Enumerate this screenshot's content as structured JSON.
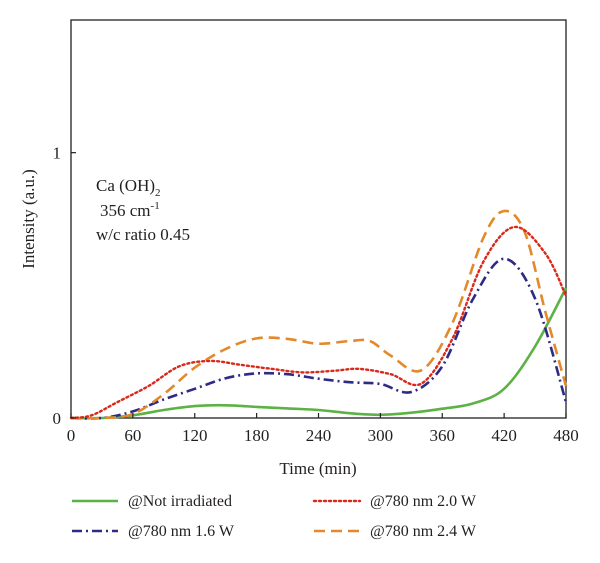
{
  "chart_data": {
    "type": "line",
    "xlabel": "Time (min)",
    "ylabel": "Intensity (a.u.)",
    "xlim": [
      0,
      480
    ],
    "ylim": [
      0,
      1.5
    ],
    "xticks": [
      0,
      60,
      120,
      180,
      240,
      300,
      360,
      420,
      480
    ],
    "yticks": [
      0,
      1
    ],
    "grid": false,
    "legend_position": "bottom",
    "annotations": {
      "compound": "Ca (OH)",
      "compound_subscript": "2",
      "wavenumber": "356 cm",
      "wavenumber_superscript": "-1",
      "ratio": "w/c ratio 0.45"
    },
    "series": [
      {
        "name": "@Not irradiated",
        "color": "#5cb245",
        "style": "solid",
        "x": [
          0,
          30,
          60,
          90,
          120,
          150,
          180,
          210,
          240,
          270,
          300,
          330,
          360,
          390,
          420,
          450,
          480
        ],
        "y": [
          0,
          0,
          0.01,
          0.03,
          0.045,
          0.048,
          0.042,
          0.036,
          0.03,
          0.018,
          0.012,
          0.02,
          0.035,
          0.055,
          0.11,
          0.27,
          0.49
        ]
      },
      {
        "name": "@780 nm 1.6 W",
        "color": "#2e2a86",
        "style": "dashdot",
        "x": [
          0,
          30,
          60,
          90,
          120,
          150,
          180,
          210,
          240,
          270,
          300,
          330,
          360,
          390,
          420,
          450,
          480
        ],
        "y": [
          0,
          0,
          0.025,
          0.07,
          0.11,
          0.15,
          0.168,
          0.165,
          0.148,
          0.135,
          0.128,
          0.098,
          0.195,
          0.45,
          0.6,
          0.45,
          0.06
        ]
      },
      {
        "name": "@780 nm 2.0 W",
        "color": "#d9291c",
        "style": "dotted",
        "x": [
          0,
          20,
          45,
          75,
          105,
          135,
          165,
          195,
          225,
          255,
          280,
          310,
          340,
          370,
          400,
          430,
          460,
          480
        ],
        "y": [
          0,
          0.01,
          0.06,
          0.12,
          0.195,
          0.215,
          0.2,
          0.185,
          0.172,
          0.178,
          0.185,
          0.165,
          0.13,
          0.3,
          0.59,
          0.72,
          0.62,
          0.46
        ]
      },
      {
        "name": "@780 nm 2.4 W",
        "color": "#e3892b",
        "style": "dashed",
        "x": [
          0,
          30,
          60,
          90,
          120,
          150,
          180,
          210,
          240,
          270,
          290,
          310,
          340,
          370,
          400,
          420,
          440,
          460,
          480
        ],
        "y": [
          0,
          0,
          0.015,
          0.09,
          0.19,
          0.26,
          0.3,
          0.298,
          0.28,
          0.29,
          0.29,
          0.235,
          0.18,
          0.36,
          0.68,
          0.78,
          0.7,
          0.4,
          0.12
        ]
      }
    ]
  }
}
